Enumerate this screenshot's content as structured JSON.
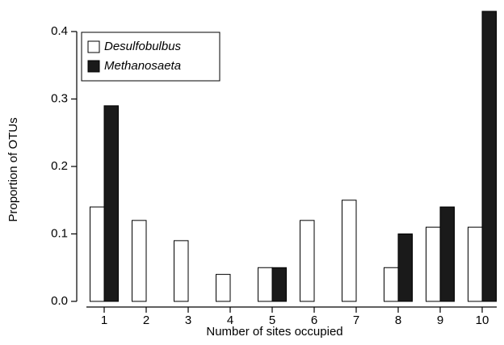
{
  "chart_data": {
    "type": "bar",
    "xlabel": "Number of sites occupied",
    "ylabel": "Proportion of OTUs",
    "categories": [
      "1",
      "2",
      "3",
      "4",
      "5",
      "6",
      "7",
      "8",
      "9",
      "10"
    ],
    "series": [
      {
        "name": "Desulfobulbus",
        "color": "#ffffff",
        "values": [
          0.14,
          0.12,
          0.09,
          0.04,
          0.05,
          0.12,
          0.15,
          0.05,
          0.11,
          0.11
        ]
      },
      {
        "name": "Methanosaeta",
        "color": "#1a1a1a",
        "values": [
          0.29,
          0,
          0,
          0,
          0.05,
          0,
          0,
          0.1,
          0.14,
          0.43
        ]
      }
    ],
    "ylim": [
      0,
      0.43
    ],
    "yticks": [
      {
        "value": 0,
        "label": "0.0"
      },
      0.1,
      0.2,
      0.3,
      0.4
    ],
    "legend": "upper left"
  }
}
